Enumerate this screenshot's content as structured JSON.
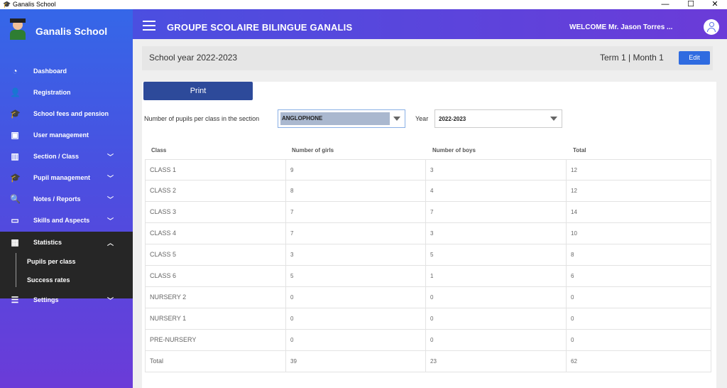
{
  "window": {
    "title": "Ganalis School",
    "minimize": "—",
    "maximize": "☐",
    "close": "✕"
  },
  "sidebar": {
    "brand": "Ganalis School",
    "items": [
      {
        "label": "Dashboard",
        "icon": "dashboard-icon",
        "chevron": ""
      },
      {
        "label": "Registration",
        "icon": "user-add-icon",
        "chevron": ""
      },
      {
        "label": "School fees and pension",
        "icon": "graduation-cap-icon",
        "chevron": ""
      },
      {
        "label": "User management",
        "icon": "user-card-icon",
        "chevron": ""
      },
      {
        "label": "Section / Class",
        "icon": "books-icon",
        "chevron": "﹀"
      },
      {
        "label": "Pupil management",
        "icon": "student-icon",
        "chevron": "﹀"
      },
      {
        "label": "Notes / Reports",
        "icon": "report-search-icon",
        "chevron": "﹀"
      },
      {
        "label": "Skills and Aspects",
        "icon": "calendar-icon",
        "chevron": "﹀"
      },
      {
        "label": "Statistics",
        "icon": "table-icon",
        "chevron": "︿"
      },
      {
        "label": "Settings",
        "icon": "settings-sliders-icon",
        "chevron": "﹀"
      }
    ],
    "statistics_sub": [
      "Pupils per class",
      "Success rates"
    ]
  },
  "header": {
    "title": "GROUPE SCOLAIRE BILINGUE GANALIS",
    "welcome": "WELCOME Mr.  Jason Torres ..."
  },
  "year_bar": {
    "school_year": "School year 2022-2023",
    "term_info": "Term 1  |  Month   1",
    "edit_label": "Edit"
  },
  "controls": {
    "print_label": "Print",
    "filter_label": "Number of pupils per class in the section",
    "section_value": "ANGLOPHONE",
    "year_label": "Year",
    "year_value": "2022-2023"
  },
  "table": {
    "headers": [
      "Class",
      "Number of girls",
      "Number of boys",
      "Total"
    ],
    "rows": [
      [
        "CLASS 1",
        "9",
        "3",
        "12"
      ],
      [
        "CLASS 2",
        "8",
        "4",
        "12"
      ],
      [
        "CLASS 3",
        "7",
        "7",
        "14"
      ],
      [
        "CLASS 4",
        "7",
        "3",
        "10"
      ],
      [
        "CLASS 5",
        "3",
        "5",
        "8"
      ],
      [
        "CLASS 6",
        "5",
        "1",
        "6"
      ],
      [
        "NURSERY 2",
        "0",
        "0",
        "0"
      ],
      [
        "NURSERY 1",
        "0",
        "0",
        "0"
      ],
      [
        "PRE-NURSERY",
        "0",
        "0",
        "0"
      ],
      [
        "Total",
        "39",
        "23",
        "62"
      ]
    ]
  },
  "colors": {
    "sidebar_top": "#3567e8",
    "sidebar_bottom": "#6b3bd8",
    "accent": "#2f6be0",
    "print_button": "#2d4a9a",
    "active_block": "#262626"
  }
}
